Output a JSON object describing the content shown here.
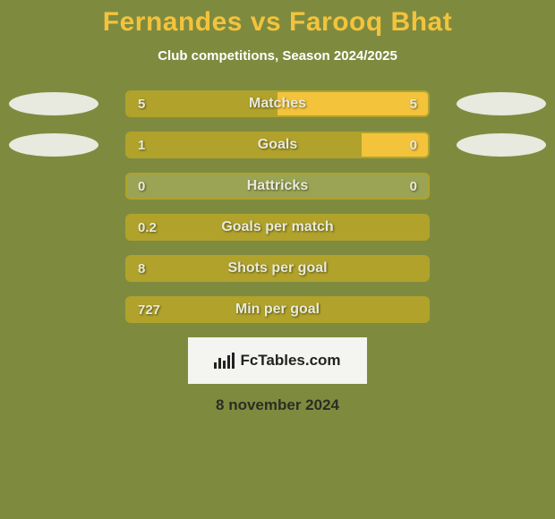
{
  "colors": {
    "background": "#7e8b3f",
    "title": "#f3c33c",
    "subtitle": "#ffffff",
    "left_fill": "#b0a22b",
    "right_fill": "#f3c33c",
    "track": "#9aa454",
    "bar_text": "#e9eadb",
    "ellipse": "#e8e9df",
    "brand_bg": "#f4f4f0",
    "date": "#2d2d22"
  },
  "title": "Fernandes vs Farooq Bhat",
  "subtitle": "Club competitions, Season 2024/2025",
  "rows": [
    {
      "label": "Matches",
      "left_val": "5",
      "right_val": "5",
      "left_pct": 50,
      "right_pct": 50,
      "show_ellipses": true
    },
    {
      "label": "Goals",
      "left_val": "1",
      "right_val": "0",
      "left_pct": 78,
      "right_pct": 22,
      "show_ellipses": true
    },
    {
      "label": "Hattricks",
      "left_val": "0",
      "right_val": "0",
      "left_pct": 0,
      "right_pct": 0,
      "show_ellipses": false
    },
    {
      "label": "Goals per match",
      "left_val": "0.2",
      "right_val": "",
      "left_pct": 100,
      "right_pct": 0,
      "show_ellipses": false
    },
    {
      "label": "Shots per goal",
      "left_val": "8",
      "right_val": "",
      "left_pct": 100,
      "right_pct": 0,
      "show_ellipses": false
    },
    {
      "label": "Min per goal",
      "left_val": "727",
      "right_val": "",
      "left_pct": 100,
      "right_pct": 0,
      "show_ellipses": false
    }
  ],
  "brand": "FcTables.com",
  "date": "8 november 2024"
}
